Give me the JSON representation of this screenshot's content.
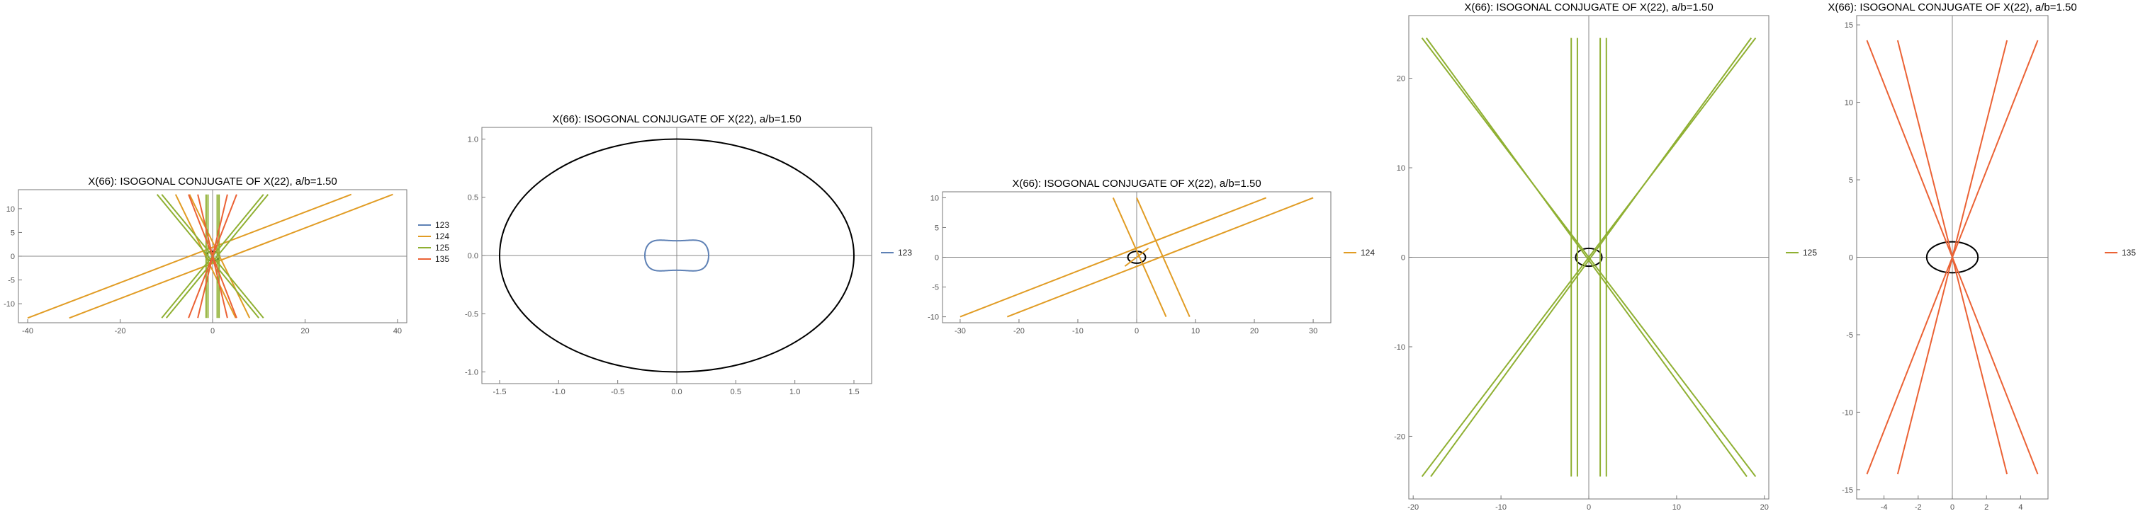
{
  "chart_data": [
    {
      "type": "line",
      "title": "X(66): ISOGONAL CONJUGATE OF X(22), a/b=1.50",
      "xlim": [
        -42,
        42
      ],
      "ylim": [
        -14,
        14
      ],
      "xticks": [
        -40,
        -20,
        0,
        20,
        40
      ],
      "yticks": [
        -10,
        -5,
        0,
        5,
        10
      ],
      "grid": false,
      "legend": "right",
      "ellipse": [
        1.5,
        1.0
      ],
      "series": [
        {
          "name": "123",
          "color": "#5e81b5",
          "segments": [
            [
              [
                -0.3,
                -0.25
              ],
              [
                0.3,
                -0.25
              ]
            ],
            [
              [
                -0.3,
                0.25
              ],
              [
                0.3,
                0.25
              ]
            ]
          ]
        },
        {
          "name": "124",
          "color": "#e19c24",
          "segments": [
            [
              [
                -40,
                -13
              ],
              [
                30,
                13
              ]
            ],
            [
              [
                -31,
                -13
              ],
              [
                39,
                13
              ]
            ],
            [
              [
                -8,
                13
              ],
              [
                5,
                -13
              ]
            ],
            [
              [
                -5,
                13
              ],
              [
                8,
                -13
              ]
            ]
          ]
        },
        {
          "name": "125",
          "color": "#8fb032",
          "segments": [
            [
              [
                -11,
                -13
              ],
              [
                11,
                13
              ]
            ],
            [
              [
                -10,
                -13
              ],
              [
                12,
                13
              ]
            ],
            [
              [
                11,
                -13
              ],
              [
                -11,
                13
              ]
            ],
            [
              [
                10,
                -13
              ],
              [
                -12,
                13
              ]
            ],
            [
              [
                -1.4,
                -13
              ],
              [
                -1.4,
                13
              ]
            ],
            [
              [
                -1,
                -13
              ],
              [
                -1,
                13
              ]
            ],
            [
              [
                1,
                -13
              ],
              [
                1,
                13
              ]
            ],
            [
              [
                1.4,
                -13
              ],
              [
                1.4,
                13
              ]
            ]
          ]
        },
        {
          "name": "135",
          "color": "#eb6235",
          "segments": [
            [
              [
                -5.2,
                -13
              ],
              [
                5.2,
                13
              ]
            ],
            [
              [
                -3.2,
                -13
              ],
              [
                3.2,
                13
              ]
            ],
            [
              [
                5.2,
                -13
              ],
              [
                -5.2,
                13
              ]
            ],
            [
              [
                3.2,
                -13
              ],
              [
                -3.2,
                13
              ]
            ]
          ]
        }
      ]
    },
    {
      "type": "line",
      "title": "X(66): ISOGONAL CONJUGATE OF X(22), a/b=1.50",
      "xlim": [
        -1.65,
        1.65
      ],
      "ylim": [
        -1.1,
        1.1
      ],
      "xticks": [
        -1.5,
        -1.0,
        -0.5,
        0.0,
        0.5,
        1.0,
        1.5
      ],
      "yticks": [
        -1.0,
        -0.5,
        0.0,
        0.5,
        1.0
      ],
      "decimals": 1,
      "grid": false,
      "legend": "right",
      "ellipse": [
        1.5,
        1.0
      ],
      "series": [
        {
          "name": "123",
          "color": "#5e81b5",
          "curve": "bowtie",
          "size": [
            0.27,
            0.23
          ]
        }
      ]
    },
    {
      "type": "line",
      "title": "X(66): ISOGONAL CONJUGATE OF X(22), a/b=1.50",
      "xlim": [
        -33,
        33
      ],
      "ylim": [
        -11,
        11
      ],
      "xticks": [
        -30,
        -20,
        -10,
        0,
        10,
        20,
        30
      ],
      "yticks": [
        -10,
        -5,
        0,
        5,
        10
      ],
      "grid": false,
      "legend": "right",
      "ellipse": [
        1.5,
        1.0
      ],
      "series": [
        {
          "name": "124",
          "color": "#e19c24",
          "segments": [
            [
              [
                -30,
                -10
              ],
              [
                22,
                10
              ]
            ],
            [
              [
                -22,
                -10
              ],
              [
                30,
                10
              ]
            ],
            [
              [
                -4,
                10
              ],
              [
                5,
                -10
              ]
            ],
            [
              [
                0,
                10
              ],
              [
                9,
                -10
              ]
            ],
            [
              [
                -2,
                -1.5
              ],
              [
                2,
                1.5
              ]
            ]
          ]
        }
      ]
    },
    {
      "type": "line",
      "title": "X(66): ISOGONAL CONJUGATE OF X(22), a/b=1.50",
      "xlim": [
        -20.5,
        20.5
      ],
      "ylim": [
        -27,
        27
      ],
      "xticks": [
        -20,
        -10,
        0,
        10,
        20
      ],
      "yticks": [
        -20,
        -10,
        0,
        10,
        20
      ],
      "grid": false,
      "legend": "right",
      "ellipse": [
        1.5,
        1.0
      ],
      "series": [
        {
          "name": "125",
          "color": "#8fb032",
          "segments": [
            [
              [
                -19,
                -24.5
              ],
              [
                19,
                24.5
              ]
            ],
            [
              [
                -18,
                -24.5
              ],
              [
                18.5,
                24.5
              ]
            ],
            [
              [
                19,
                -24.5
              ],
              [
                -19,
                24.5
              ]
            ],
            [
              [
                18,
                -24.5
              ],
              [
                -18.5,
                24.5
              ]
            ],
            [
              [
                -2,
                -24.5
              ],
              [
                -2,
                24.5
              ]
            ],
            [
              [
                -1.3,
                -24.5
              ],
              [
                -1.3,
                24.5
              ]
            ],
            [
              [
                1.3,
                -24.5
              ],
              [
                1.3,
                24.5
              ]
            ],
            [
              [
                2,
                -24.5
              ],
              [
                2,
                24.5
              ]
            ]
          ]
        }
      ]
    },
    {
      "type": "line",
      "title": "X(66): ISOGONAL CONJUGATE OF X(22), a/b=1.50",
      "xlim": [
        -5.6,
        5.6
      ],
      "ylim": [
        -15.6,
        15.6
      ],
      "xticks": [
        -4,
        -2,
        0,
        2,
        4
      ],
      "yticks": [
        -15,
        -10,
        -5,
        0,
        5,
        10,
        15
      ],
      "grid": false,
      "legend": "right",
      "ellipse": [
        1.5,
        1.0
      ],
      "series": [
        {
          "name": "135",
          "color": "#eb6235",
          "segments": [
            [
              [
                -5,
                -14
              ],
              [
                5,
                14
              ]
            ],
            [
              [
                -3.2,
                -14
              ],
              [
                3.2,
                14
              ]
            ],
            [
              [
                5,
                -14
              ],
              [
                -5,
                14
              ]
            ],
            [
              [
                3.2,
                -14
              ],
              [
                -3.2,
                14
              ]
            ]
          ]
        }
      ]
    }
  ]
}
